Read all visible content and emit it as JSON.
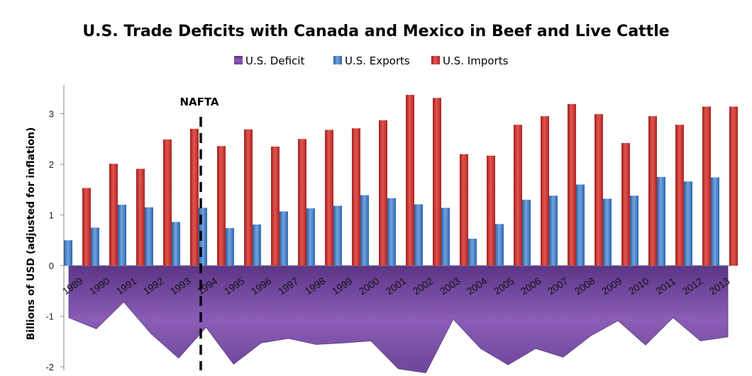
{
  "chart_data": {
    "type": "bar",
    "title": "U.S. Trade Deficits with Canada and Mexico in Beef and Live Cattle",
    "ylabel": "Billions of USD (adjusted for inflation)",
    "xlabel": "",
    "ylim": [
      -2,
      3.5
    ],
    "yticks": [
      -2,
      -1,
      0,
      1,
      2,
      3
    ],
    "grid": false,
    "legend_position": "top-center",
    "categories": [
      "1989",
      "1990",
      "1991",
      "1992",
      "1993",
      "1994",
      "1995",
      "1996",
      "1997",
      "1998",
      "1999",
      "2000",
      "2001",
      "2002",
      "2003",
      "2004",
      "2005",
      "2006",
      "2007",
      "2008",
      "2009",
      "2010",
      "2011",
      "2012",
      "2013"
    ],
    "series": [
      {
        "name": "U.S. Deficit",
        "kind": "area",
        "color": "#7B4FA6",
        "values": [
          -1.03,
          -1.25,
          -0.72,
          -1.35,
          -1.83,
          -1.22,
          -1.95,
          -1.53,
          -1.44,
          -1.56,
          -1.53,
          -1.49,
          -2.04,
          -2.12,
          -1.06,
          -1.64,
          -1.96,
          -1.64,
          -1.81,
          -1.39,
          -1.09,
          -1.57,
          -1.03,
          -1.49,
          -1.41
        ]
      },
      {
        "name": "U.S. Exports",
        "kind": "bar",
        "color": "#3A7BC8",
        "values": [
          0.5,
          0.75,
          1.2,
          1.15,
          0.86,
          1.14,
          0.74,
          0.81,
          1.07,
          1.13,
          1.18,
          1.39,
          1.33,
          1.21,
          1.14,
          0.53,
          0.82,
          1.3,
          1.38,
          1.6,
          1.32,
          1.38,
          1.75,
          1.66,
          1.74
        ]
      },
      {
        "name": "U.S. Imports",
        "kind": "bar",
        "color": "#C8302C",
        "values": [
          1.53,
          2.01,
          1.91,
          2.49,
          2.7,
          2.36,
          2.69,
          2.35,
          2.5,
          2.68,
          2.71,
          2.87,
          3.37,
          3.31,
          2.2,
          2.17,
          2.78,
          2.95,
          3.19,
          2.99,
          2.42,
          2.95,
          2.78,
          3.14,
          3.14
        ]
      }
    ],
    "annotations": [
      {
        "text": "NAFTA",
        "at_category": "1994",
        "style": "dashed vertical line"
      }
    ]
  }
}
